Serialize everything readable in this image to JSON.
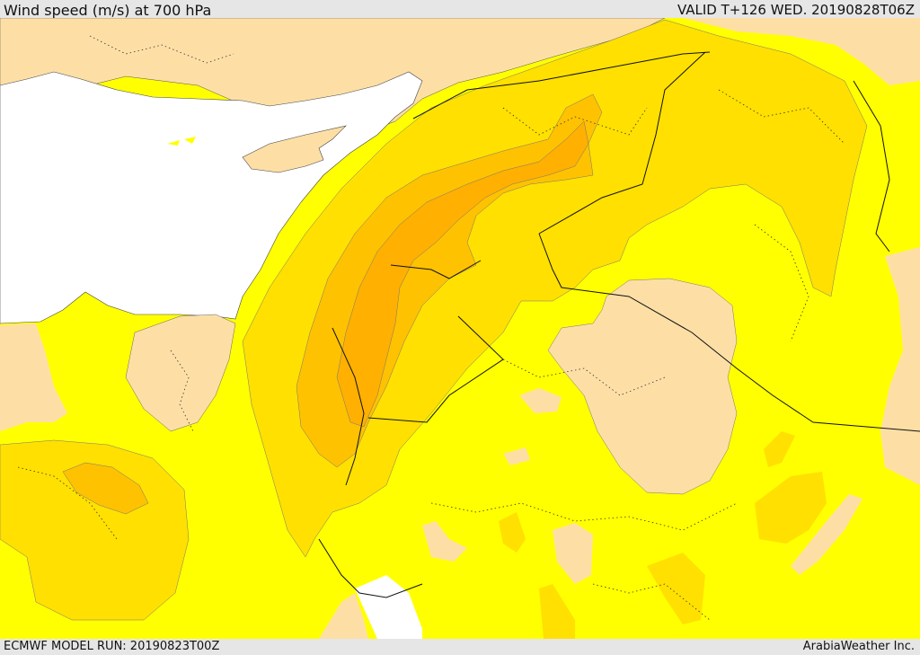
{
  "header": {
    "title": "Wind speed (m/s) at 700 hPa",
    "valid_time": "VALID T+126 WED. 20190828T06Z"
  },
  "footer": {
    "model_run": "ECMWF MODEL RUN: 20190823T00Z",
    "credit": "ArabiaWeather Inc."
  },
  "map": {
    "variable": "Wind speed",
    "units": "m/s",
    "level": "700 hPa",
    "colors": {
      "sea": "#ffffff",
      "light_wind_land": "#fddfa6",
      "band_1": "#ffff00",
      "band_2": "#ffe000",
      "band_3": "#ffc200",
      "band_4": "#ffb000",
      "border": "#000000"
    }
  }
}
